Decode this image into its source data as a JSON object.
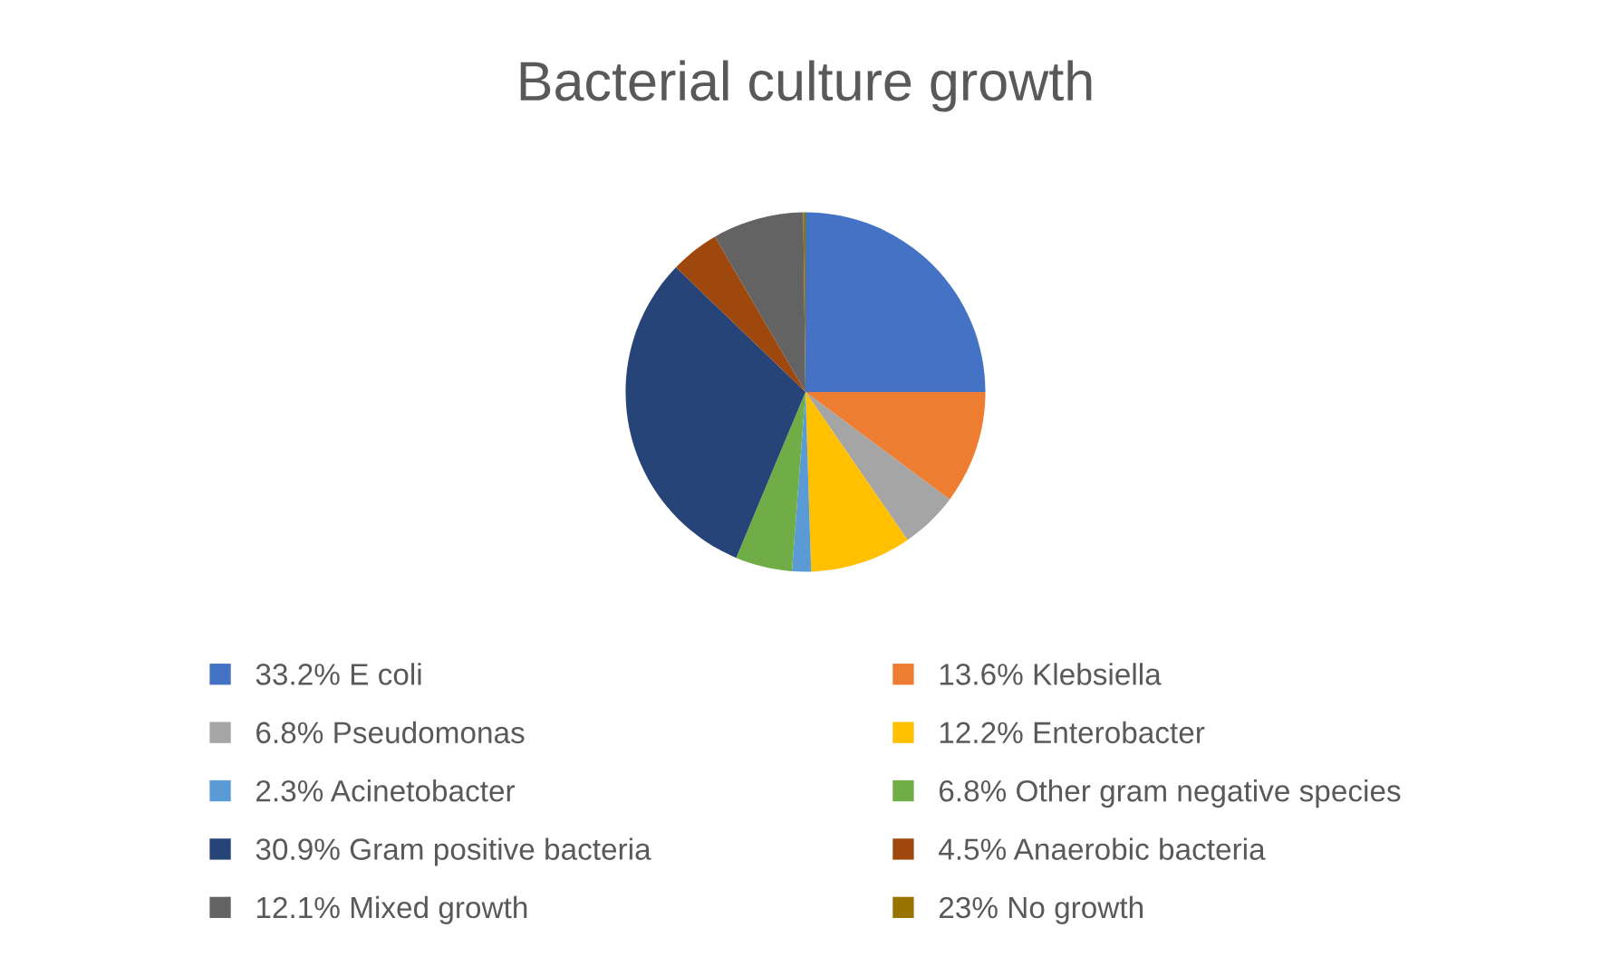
{
  "chart_data": {
    "type": "pie",
    "title": "Bacterial culture growth",
    "categories": [
      "33.2% E coli",
      "13.6% Klebsiella",
      "6.8% Pseudomonas",
      "12.2% Enterobacter",
      "2.3% Acinetobacter",
      "6.8% Other gram negative species",
      "30.9% Gram positive bacteria",
      "4.5% Anaerobic bacteria",
      "12.1% Mixed growth",
      "23% No growth"
    ],
    "values": [
      25,
      10.2,
      5.2,
      9.1,
      1.7,
      5.1,
      30.9,
      4.4,
      8.2,
      0.2
    ],
    "colors": [
      "#4472c4",
      "#ed7d31",
      "#a5a5a5",
      "#ffc000",
      "#5b9bd5",
      "#70ad47",
      "#264478",
      "#9e480e",
      "#636363",
      "#997300"
    ],
    "legend": "bottom"
  }
}
